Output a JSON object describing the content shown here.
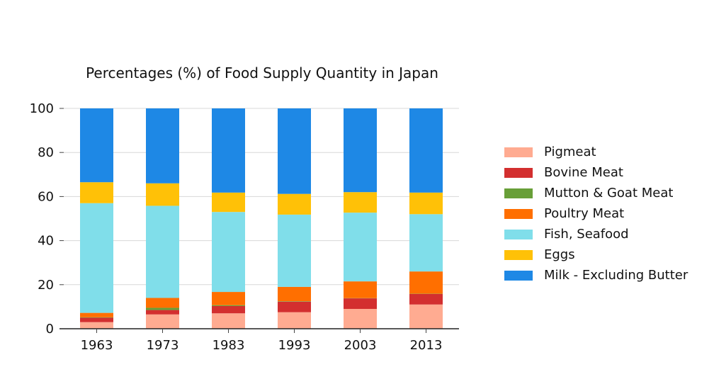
{
  "chart_data": {
    "type": "bar",
    "stacked": true,
    "title": "Percentages (%) of Food Supply Quantity in Japan",
    "xlabel": "",
    "ylabel": "",
    "ylim": [
      0,
      100
    ],
    "yticks": [
      0,
      20,
      40,
      60,
      80,
      100
    ],
    "grid": true,
    "legend_position": "right",
    "categories": [
      "1963",
      "1973",
      "1983",
      "1993",
      "2003",
      "2013"
    ],
    "series": [
      {
        "name": "Pigmeat",
        "color": "#ffab91",
        "values": [
          3.0,
          6.5,
          7.0,
          7.5,
          9.0,
          11.0
        ]
      },
      {
        "name": "Bovine Meat",
        "color": "#d32f2f",
        "values": [
          2.0,
          2.0,
          3.3,
          4.8,
          4.8,
          4.8
        ]
      },
      {
        "name": "Mutton & Goat Meat",
        "color": "#689f38",
        "values": [
          0.2,
          1.0,
          0.4,
          0.2,
          0.1,
          0.1
        ]
      },
      {
        "name": "Poultry Meat",
        "color": "#ff6f00",
        "values": [
          2.0,
          4.5,
          6.0,
          6.5,
          7.6,
          10.1
        ]
      },
      {
        "name": "Fish, Seafood",
        "color": "#80deea",
        "values": [
          49.8,
          41.8,
          36.3,
          32.8,
          31.2,
          26.0
        ]
      },
      {
        "name": "Eggs",
        "color": "#ffc107",
        "values": [
          9.5,
          10.2,
          8.8,
          9.4,
          9.3,
          9.8
        ]
      },
      {
        "name": "Milk - Excluding Butter",
        "color": "#1e88e5",
        "values": [
          33.5,
          34.0,
          38.2,
          38.8,
          38.0,
          38.2
        ]
      }
    ]
  }
}
